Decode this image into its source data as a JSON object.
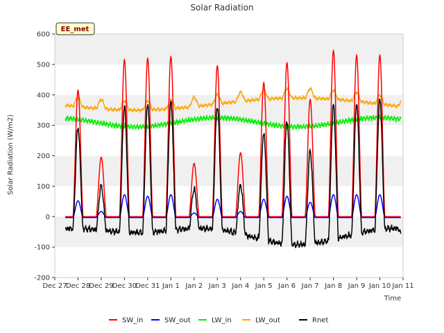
{
  "chart_data": {
    "type": "line",
    "title": "Solar Radiation",
    "xlabel": "Time",
    "ylabel": "Solar Radiation (W/m2)",
    "ylim": [
      -200,
      600
    ],
    "yticks": [
      -200,
      -100,
      0,
      100,
      200,
      300,
      400,
      500,
      600
    ],
    "xlim": [
      0,
      15
    ],
    "xticks": [
      0,
      1,
      2,
      3,
      4,
      5,
      6,
      7,
      8,
      9,
      10,
      11,
      12,
      13,
      14,
      15
    ],
    "xtick_labels": [
      "Dec 27",
      "Dec 28",
      "Dec 29",
      "Dec 30",
      "Dec 31",
      "Jan 1",
      "Jan 2",
      "Jan 3",
      "Jan 4",
      "Jan 5",
      "Jan 6",
      "Jan 7",
      "Jan 8",
      "Jan 9",
      "Jan 10",
      "Jan 11"
    ],
    "x_unit_note": "x values are days after Dec 27 (tick labels are dates)",
    "grid": "horizontal bands",
    "legend_position": "bottom",
    "annotation": "EE_met",
    "daily_peaks": {
      "days": [
        1,
        2,
        3,
        4,
        5,
        6,
        7,
        8,
        9,
        10,
        11,
        12,
        13,
        14
      ],
      "sw_in": [
        415,
        195,
        515,
        520,
        525,
        175,
        495,
        210,
        440,
        505,
        385,
        545,
        530,
        530
      ],
      "sw_out": [
        55,
        20,
        75,
        70,
        75,
        15,
        60,
        20,
        60,
        70,
        50,
        75,
        75,
        75
      ],
      "lw_out_baseline": 370,
      "lw_in_baseline": 310
    },
    "series": [
      {
        "name": "SW_in",
        "color": "#ff0000"
      },
      {
        "name": "SW_out",
        "color": "#0000ff"
      },
      {
        "name": "LW_in",
        "color": "#00ee00"
      },
      {
        "name": "LW_out",
        "color": "#ffa500"
      },
      {
        "name": "Rnet",
        "color": "#000000"
      }
    ]
  }
}
